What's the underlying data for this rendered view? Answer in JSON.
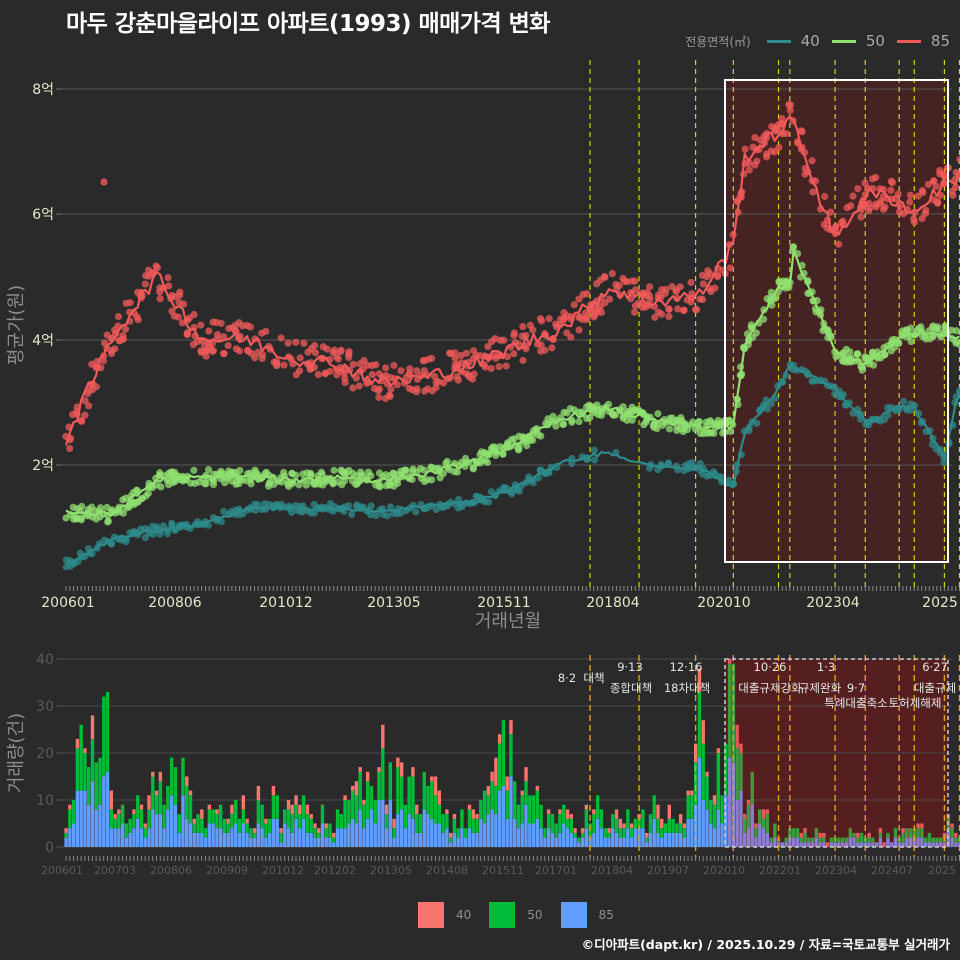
{
  "header": {
    "title": "마두 강춘마을라이프 아파트(1993) 매매가격 변화"
  },
  "legend_top": {
    "title": "전용면적(㎡)",
    "items": [
      {
        "label": "40",
        "color": "#2e8b8b"
      },
      {
        "label": "50",
        "color": "#90e070"
      },
      {
        "label": "85",
        "color": "#f05a5a"
      }
    ]
  },
  "legend_bottom": {
    "items": [
      {
        "label": "40",
        "color": "#f8766d"
      },
      {
        "label": "50",
        "color": "#00ba38"
      },
      {
        "label": "85",
        "color": "#619cff"
      }
    ]
  },
  "footer": {
    "credit": "©디아파트(dapt.kr) / 2025.10.29 / 자료=국토교통부 실거래가"
  },
  "chart_data": [
    {
      "type": "line",
      "title": "마두 강춘마을라이프 아파트(1993) 매매가격 변화",
      "xlabel": "거래년월",
      "ylabel": "평균가(원)",
      "yticks": [
        "2억",
        "4억",
        "6억",
        "8억"
      ],
      "xticks": [
        "200601",
        "200806",
        "201012",
        "201305",
        "201511",
        "201804",
        "202010",
        "202304",
        "2025"
      ],
      "ylim_eok": [
        0.2,
        8.2
      ],
      "grid": true,
      "legend_position": "top-right",
      "highlight_box": {
        "from": "202010",
        "to": "202510"
      },
      "policy_lines": [
        "201708",
        "201809",
        "201912",
        "202010",
        "202110",
        "202201",
        "202301",
        "202309",
        "202406",
        "202410",
        "202506",
        "202510"
      ],
      "series": [
        {
          "name": "40",
          "color": "#2e8b8b",
          "x": [
            "200601",
            "200701",
            "200801",
            "200901",
            "201001",
            "201101",
            "201201",
            "201301",
            "201401",
            "201501",
            "201601",
            "201701",
            "201801",
            "201901",
            "202001",
            "202010",
            "202101",
            "202110",
            "202201",
            "202301",
            "202309",
            "202401",
            "202406",
            "202410",
            "202506",
            "202509",
            "202510"
          ],
          "values": [
            0.4,
            0.8,
            0.95,
            1.05,
            1.3,
            1.3,
            1.3,
            1.25,
            1.35,
            1.4,
            1.65,
            2.05,
            2.2,
            1.95,
            1.95,
            1.65,
            2.5,
            3.2,
            3.6,
            3.2,
            2.7,
            2.75,
            2.95,
            2.9,
            2.1,
            3.0,
            3.1
          ]
        },
        {
          "name": "50",
          "color": "#90e070",
          "x": [
            "200601",
            "200701",
            "200801",
            "200901",
            "201001",
            "201101",
            "201201",
            "201301",
            "201401",
            "201501",
            "201601",
            "201701",
            "201801",
            "201901",
            "202001",
            "202010",
            "202101",
            "202110",
            "202201",
            "202202",
            "202301",
            "202309",
            "202401",
            "202406",
            "202410",
            "202506",
            "202510"
          ],
          "values": [
            1.25,
            1.2,
            1.75,
            1.8,
            1.8,
            1.75,
            1.8,
            1.75,
            1.85,
            2.05,
            2.35,
            2.75,
            2.9,
            2.7,
            2.6,
            2.6,
            3.9,
            4.85,
            4.8,
            5.4,
            3.8,
            3.6,
            3.8,
            4.0,
            4.1,
            4.1,
            4.0
          ]
        },
        {
          "name": "85",
          "color": "#f05a5a",
          "x": [
            "200601",
            "200701",
            "200801",
            "200901",
            "201001",
            "201101",
            "201201",
            "201301",
            "201401",
            "201501",
            "201601",
            "201701",
            "201801",
            "201901",
            "202001",
            "202010",
            "202101",
            "202110",
            "202201",
            "202202",
            "202301",
            "202309",
            "202401",
            "202406",
            "202410",
            "202506",
            "202510"
          ],
          "values": [
            2.4,
            4.0,
            5.0,
            4.0,
            4.0,
            3.7,
            3.6,
            3.3,
            3.4,
            3.6,
            3.9,
            4.2,
            4.8,
            4.6,
            4.7,
            5.5,
            6.9,
            7.3,
            7.5,
            7.4,
            5.6,
            6.3,
            6.3,
            6.2,
            6.0,
            6.5,
            6.6
          ]
        }
      ]
    },
    {
      "type": "bar",
      "stacked": true,
      "ylabel": "거래량(건)",
      "yticks": [
        0,
        10,
        20,
        30,
        40
      ],
      "ylim": [
        0,
        40
      ],
      "xticks": [
        "200601",
        "200703",
        "200806",
        "200909",
        "201012",
        "201202",
        "201305",
        "201408",
        "201511",
        "201701",
        "201804",
        "201907",
        "202010",
        "202201",
        "202304",
        "202407",
        "2025"
      ],
      "annotations": [
        {
          "date": "8·2",
          "label": "대책"
        },
        {
          "date": "9·13",
          "label": "종합대책"
        },
        {
          "date": "12·16",
          "label": "18차대책"
        },
        {
          "date": "10·26",
          "label": "대출규제강화"
        },
        {
          "date": "1·3",
          "label": "규제완화"
        },
        {
          "date": "9·7",
          "label": "특례대출축소"
        },
        {
          "date": "",
          "label": "토허제해제"
        },
        {
          "date": "6·27",
          "label": "대출규제"
        }
      ],
      "series_order": [
        "85",
        "50",
        "40"
      ],
      "series": [
        {
          "name": "85",
          "color": "#619cff"
        },
        {
          "name": "50",
          "color": "#00ba38"
        },
        {
          "name": "40",
          "color": "#f8766d"
        }
      ],
      "approx_monthly_totals_sample": {
        "2006-2007 peak": 32,
        "2008": 17,
        "2009-2010": 17,
        "2013-2014": 21,
        "2016": 26,
        "2020-10": 40
      }
    }
  ],
  "axes_labels": {
    "top_x": "거래년월",
    "top_y": "평균가(원)",
    "bottom_y": "거래량(건)",
    "top_yticks": [
      "8억",
      "6억",
      "4억",
      "2억"
    ],
    "top_xticks": [
      "200601",
      "200806",
      "201012",
      "201305",
      "201511",
      "201804",
      "202010",
      "202304",
      "2025"
    ],
    "bottom_yticks": [
      "40",
      "30",
      "20",
      "10",
      "0"
    ],
    "bottom_xticks": [
      "200601",
      "200703",
      "200806",
      "200909",
      "201012",
      "201202",
      "201305",
      "201408",
      "201511",
      "201701",
      "201804",
      "201907",
      "202010",
      "202201",
      "202304",
      "202407",
      "2025"
    ]
  },
  "annotations": {
    "a1_date": "8·2",
    "a1_label": "대책",
    "a2_date": "9·13",
    "a2_label": "종합대책",
    "a3_date": "12·16",
    "a3_label": "18차대책",
    "a4_date": "10·26",
    "a4_label": "대출규제강화",
    "a5_date": "1·3",
    "a5_label": "규제완화",
    "a6_date": "9·7",
    "a6_label": "특례대출축소",
    "a7_label": "토허제해제",
    "a8_date": "6·27",
    "a8_label": "대출규제"
  }
}
